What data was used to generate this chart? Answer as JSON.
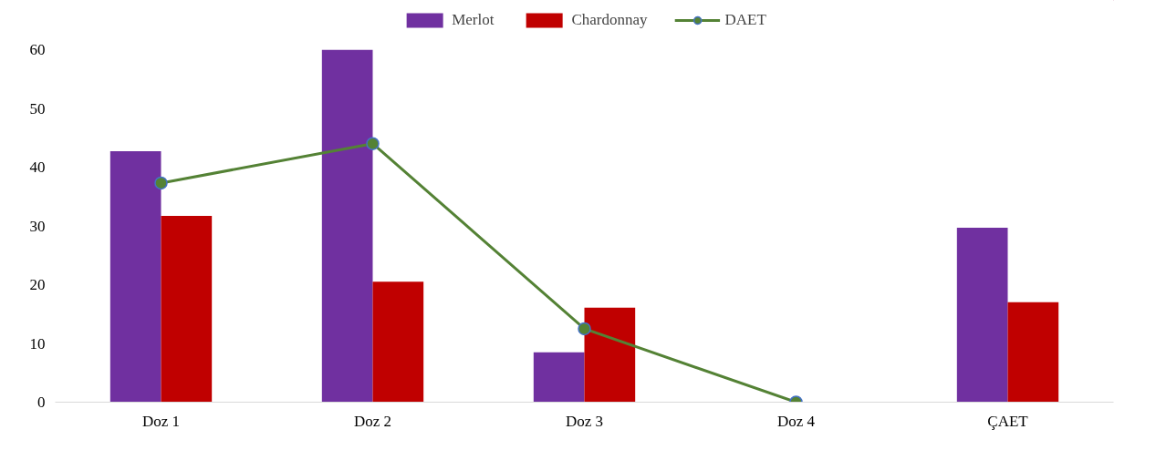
{
  "chart_data": {
    "type": "bar",
    "categories": [
      "Doz 1",
      "Doz 2",
      "Doz 3",
      "Doz 4",
      "ÇAET"
    ],
    "series": [
      {
        "name": "Merlot",
        "color": "#7030a0",
        "values": [
          42.7,
          60,
          8.5,
          null,
          29.7
        ]
      },
      {
        "name": "Chardonnay",
        "color": "#c00000",
        "values": [
          31.7,
          20.5,
          16.1,
          null,
          17.0
        ]
      },
      {
        "name": "DAET",
        "type": "line",
        "color": "#548235",
        "values": [
          37.3,
          44,
          12.5,
          0,
          null
        ]
      }
    ],
    "ylim": [
      0,
      60
    ],
    "yticks": [
      0,
      10,
      20,
      30,
      40,
      50,
      60
    ],
    "grid": false,
    "legend": "top",
    "marker": "circle"
  }
}
